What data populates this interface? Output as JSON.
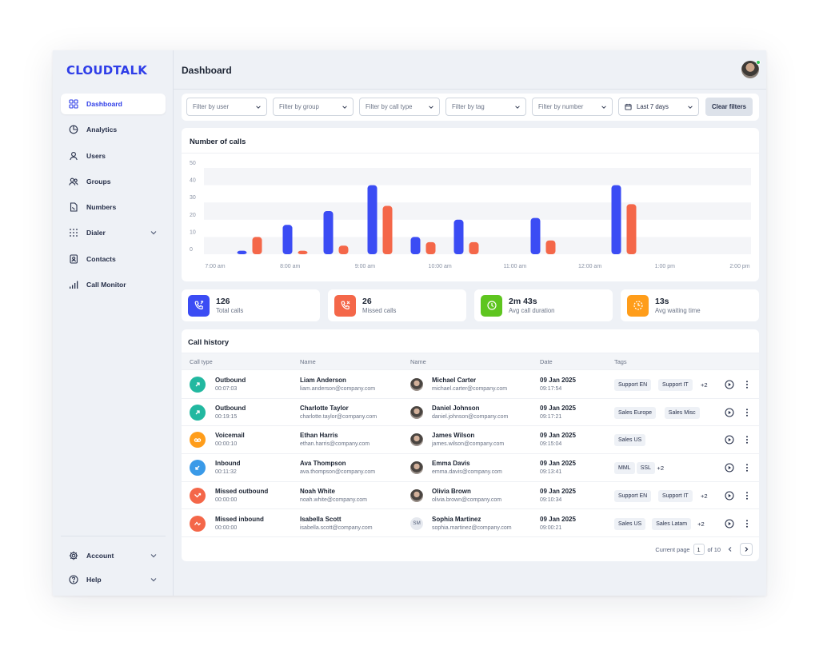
{
  "app": {
    "logo": "CLOUDTALK",
    "page_title": "Dashboard"
  },
  "colors": {
    "accent": "#2f3ee8",
    "bar_blue": "#3b4cf4",
    "bar_orange": "#f46749",
    "online": "#34c759"
  },
  "sidebar": {
    "items": [
      {
        "label": "Dashboard",
        "icon": "grid-icon",
        "active": true
      },
      {
        "label": "Analytics",
        "icon": "pie-chart-icon"
      },
      {
        "label": "Users",
        "icon": "user-icon"
      },
      {
        "label": "Groups",
        "icon": "users-icon"
      },
      {
        "label": "Numbers",
        "icon": "phone-number-icon"
      },
      {
        "label": "Dialer",
        "icon": "dialpad-icon",
        "expandable": true
      },
      {
        "label": "Contacts",
        "icon": "contacts-icon"
      },
      {
        "label": "Call Monitor",
        "icon": "signal-bars-icon"
      }
    ],
    "bottom": [
      {
        "label": "Account",
        "icon": "gear-icon"
      },
      {
        "label": "Help",
        "icon": "help-icon"
      }
    ]
  },
  "filters": {
    "user": "Filter by user",
    "group": "Filter by group",
    "call_type": "Filter by call type",
    "tag": "Filter by tag",
    "number": "Filter by number",
    "date": "Last 7 days",
    "clear": "Clear filters"
  },
  "chart": {
    "title": "Number of calls"
  },
  "chart_data": {
    "type": "bar",
    "title": "Number of calls",
    "xlabel": "",
    "ylabel": "",
    "ylim": [
      0,
      50
    ],
    "yticks": [
      0,
      10,
      20,
      30,
      40,
      50
    ],
    "x_tick_labels": [
      "7:00 am",
      "8:00 am",
      "9:00 am",
      "10:00 am",
      "11:00 am",
      "12:00 am",
      "1:00 pm",
      "2:00 pm"
    ],
    "grid": "horizontal bands",
    "series": [
      {
        "color": "#3b4cf4",
        "values": [
          2,
          17,
          25,
          40,
          10,
          20,
          21,
          40
        ]
      },
      {
        "color": "#f46749",
        "values": [
          10,
          2,
          5,
          28,
          7,
          7,
          8,
          29
        ]
      }
    ]
  },
  "stats": [
    {
      "value": "126",
      "label": "Total calls",
      "color": "#3b4cf4",
      "icon": "phone-incoming-icon"
    },
    {
      "value": "26",
      "label": "Missed calls",
      "color": "#f46749",
      "icon": "phone-missed-icon"
    },
    {
      "value": "2m 43s",
      "label": "Avg call duration",
      "color": "#5ec51f",
      "icon": "clock-icon"
    },
    {
      "value": "13s",
      "label": "Avg waiting time",
      "color": "#ff9d1a",
      "icon": "hourglass-icon"
    }
  ],
  "history": {
    "title": "Call history",
    "headers": [
      "Call type",
      "Name",
      "Name",
      "Date",
      "Tags"
    ],
    "rows": [
      {
        "type": "Outbound",
        "duration": "00:07:03",
        "icon": "outbound-arrow-icon",
        "color": "#22b8a0",
        "contact": "Liam Anderson",
        "contact_email": "liam.anderson@company.com",
        "agent": "Michael Carter",
        "agent_email": "michael.carter@company.com",
        "agent_initials": "",
        "date": "09 Jan 2025",
        "time": "09:17:54",
        "tags": [
          "Support EN",
          "Support IT"
        ],
        "more": "+2"
      },
      {
        "type": "Outbound",
        "duration": "00:19:15",
        "icon": "outbound-arrow-icon",
        "color": "#22b8a0",
        "contact": "Charlotte Taylor",
        "contact_email": "charlotte.taylor@company.com",
        "agent": "Daniel Johnson",
        "agent_email": "daniel.johnson@company.com",
        "agent_initials": "",
        "date": "09 Jan 2025",
        "time": "09:17:21",
        "tags": [
          "Sales Europe",
          "Sales Misc"
        ],
        "more": ""
      },
      {
        "type": "Voicemail",
        "duration": "00:00:10",
        "icon": "voicemail-icon",
        "color": "#ff9d1a",
        "contact": "Ethan Harris",
        "contact_email": "ethan.harris@company.com",
        "agent": "James Wilson",
        "agent_email": "james.wilson@company.com",
        "agent_initials": "",
        "date": "09 Jan 2025",
        "time": "09:15:04",
        "tags": [
          "Sales US"
        ],
        "more": ""
      },
      {
        "type": "Inbound",
        "duration": "00:11:32",
        "icon": "inbound-arrow-icon",
        "color": "#3a9ae8",
        "contact": "Ava Thompson",
        "contact_email": "ava.thompson@company.com",
        "agent": "Emma Davis",
        "agent_email": "emma.davis@company.com",
        "agent_initials": "",
        "date": "09 Jan 2025",
        "time": "09:13:41",
        "tags": [
          "MML",
          "SSL"
        ],
        "more": "+2"
      },
      {
        "type": "Missed outbound",
        "duration": "00:00:00",
        "icon": "missed-outbound-icon",
        "color": "#f46749",
        "contact": "Noah White",
        "contact_email": "noah.white@company.com",
        "agent": "Olivia Brown",
        "agent_email": "olivia.brown@company.com",
        "agent_initials": "",
        "date": "09 Jan 2025",
        "time": "09:10:34",
        "tags": [
          "Support EN",
          "Support IT"
        ],
        "more": "+2"
      },
      {
        "type": "Missed inbound",
        "duration": "00:00:00",
        "icon": "missed-inbound-icon",
        "color": "#f46749",
        "contact": "Isabella Scott",
        "contact_email": "isabella.scott@company.com",
        "agent": "Sophia Martinez",
        "agent_email": "sophia.martinez@company.com",
        "agent_initials": "SM",
        "date": "09 Jan 2025",
        "time": "09:00:21",
        "tags": [
          "Sales US",
          "Sales Latam"
        ],
        "more": "+2"
      }
    ]
  },
  "pager": {
    "label": "Current page",
    "page": "1",
    "of": "of 10"
  }
}
